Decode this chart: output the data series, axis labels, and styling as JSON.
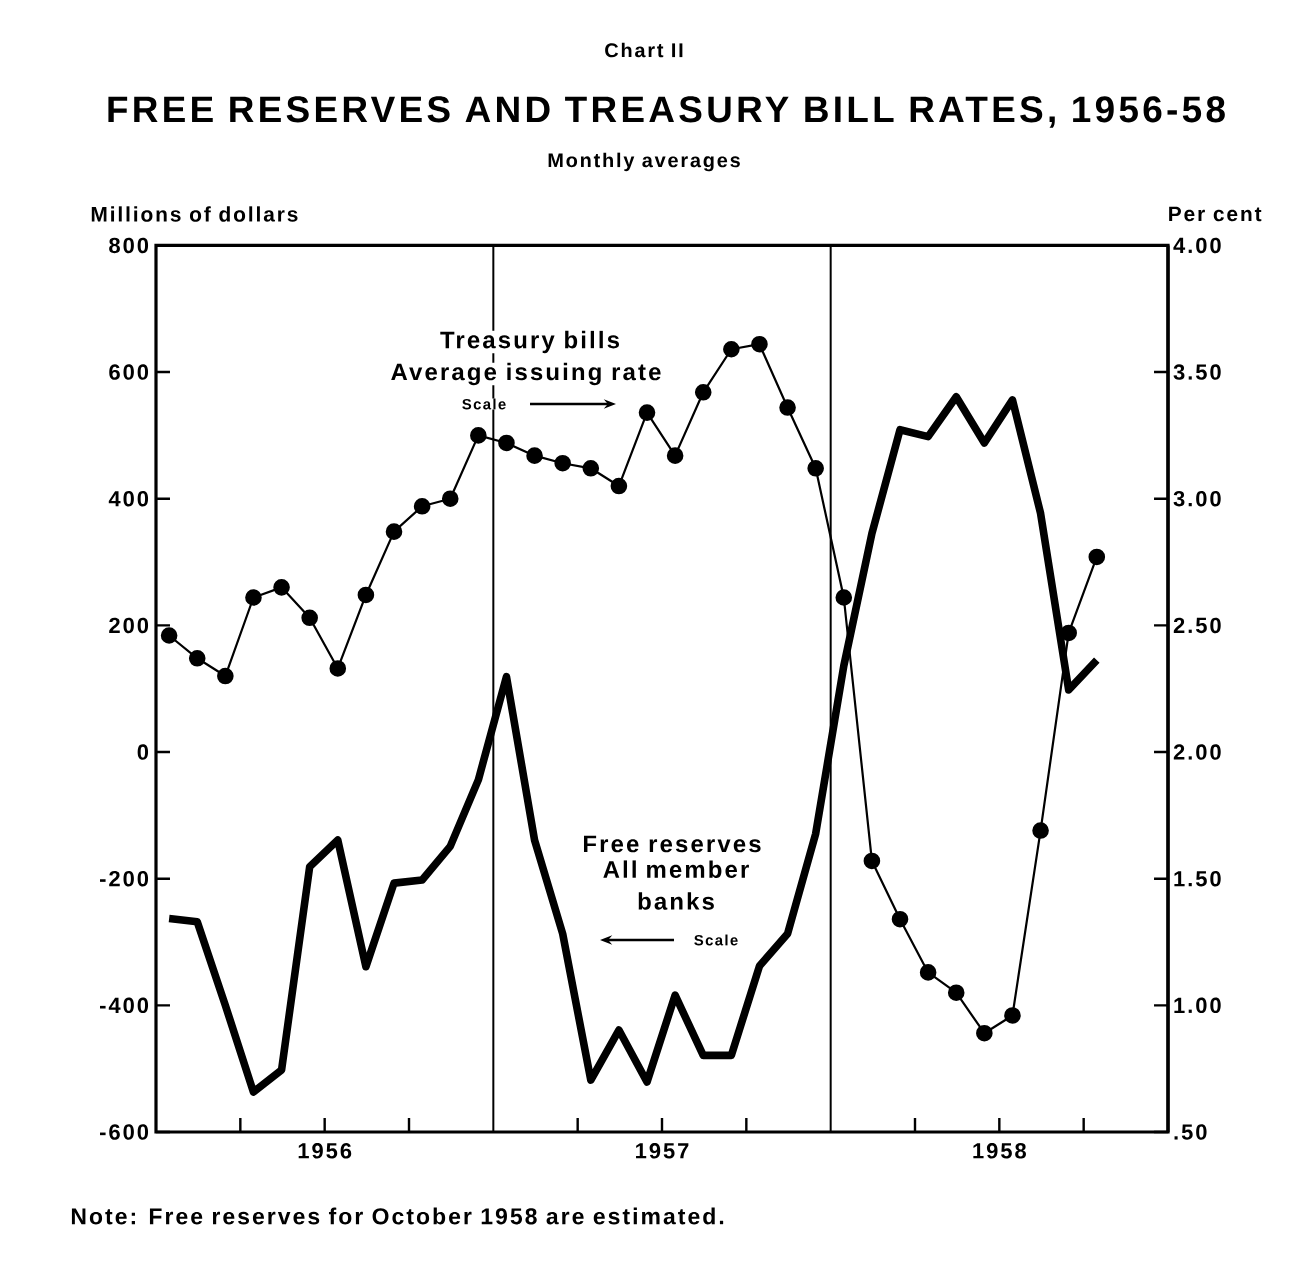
{
  "chart_data": {
    "type": "line",
    "title": "FREE RESERVES AND TREASURY BILL RATES, 1956-58",
    "subtitle": "Monthly averages",
    "ylabel": "Millions of dollars",
    "y2label": "Per cent",
    "x": [
      "1956-01-15",
      "1956-02-15",
      "1956-03-15",
      "1956-04-15",
      "1956-05-15",
      "1956-06-15",
      "1956-07-15",
      "1956-08-15",
      "1956-09-15",
      "1956-10-15",
      "1956-11-15",
      "1956-12-15",
      "1957-01-15",
      "1957-02-15",
      "1957-03-15",
      "1957-04-15",
      "1957-05-15",
      "1957-06-15",
      "1957-07-15",
      "1957-08-15",
      "1957-09-15",
      "1957-10-15",
      "1957-11-15",
      "1957-12-15",
      "1958-01-15",
      "1958-02-15",
      "1958-03-15",
      "1958-04-15",
      "1958-05-15",
      "1958-06-15",
      "1958-07-15",
      "1958-08-15",
      "1958-09-15",
      "1958-10-15"
    ],
    "series": [
      {
        "name": "Free reserves",
        "color": "#000000",
        "marker": "none",
        "values": [
          -263,
          -268,
          -400,
          -537,
          -502,
          -181,
          -139,
          -339,
          -207,
          -202,
          -149,
          -44,
          119,
          -139,
          -287,
          -518,
          -439,
          -521,
          -384,
          -479,
          -479,
          -338,
          -287,
          -129,
          136,
          345,
          509,
          498,
          561,
          488,
          556,
          377,
          98,
          145
        ]
      },
      {
        "name": "Treasury bills",
        "color": "#000000",
        "marker": "circle",
        "axis": "y2",
        "values": [
          2.46,
          2.37,
          2.3,
          2.61,
          2.65,
          2.53,
          2.33,
          2.62,
          2.87,
          2.97,
          3.0,
          3.25,
          3.22,
          3.17,
          3.14,
          3.12,
          3.05,
          3.34,
          3.17,
          3.42,
          3.59,
          3.61,
          3.36,
          3.12,
          2.61,
          1.57,
          1.34,
          1.13,
          1.05,
          0.89,
          0.96,
          1.69,
          2.47,
          2.77
        ]
      }
    ],
    "xlim": [
      "1956-01",
      "1959-01"
    ],
    "xticks": [
      {
        "value": "1956-04",
        "label": null
      },
      {
        "value": "1956-07",
        "label": "1956"
      },
      {
        "value": "1956-10",
        "label": null
      },
      {
        "value": "1957-04",
        "label": null
      },
      {
        "value": "1957-07",
        "label": "1957"
      },
      {
        "value": "1957-10",
        "label": null
      },
      {
        "value": "1958-04",
        "label": null
      },
      {
        "value": "1958-07",
        "label": "1958"
      },
      {
        "value": "1958-10",
        "label": null
      }
    ],
    "ylim": [
      -600,
      800
    ],
    "yticks": [
      -600,
      -400,
      -200,
      0,
      200,
      400,
      600,
      800
    ],
    "y2lim": [
      0.5,
      4
    ],
    "y2ticks": [
      {
        "value": 0.5,
        "label": ".50"
      },
      {
        "value": 1,
        "label": "1.00"
      },
      {
        "value": 1.5,
        "label": "1.50"
      },
      {
        "value": 2,
        "label": "2.00"
      },
      {
        "value": 2.5,
        "label": "2.50"
      },
      {
        "value": 3,
        "label": "3.00"
      },
      {
        "value": 3.5,
        "label": "3.50"
      },
      {
        "value": 4,
        "label": "4.00"
      }
    ],
    "ref_lines": [
      {
        "axis": "x",
        "value": "1957-01",
        "color": "#000000"
      },
      {
        "axis": "x",
        "value": "1958-01",
        "color": "#000000"
      }
    ],
    "annotations": [
      "Chart II",
      "Average issuing rate",
      "Scale",
      "All member banks",
      "Scale",
      "Note: Free reserves for October 1958 are estimated."
    ]
  }
}
